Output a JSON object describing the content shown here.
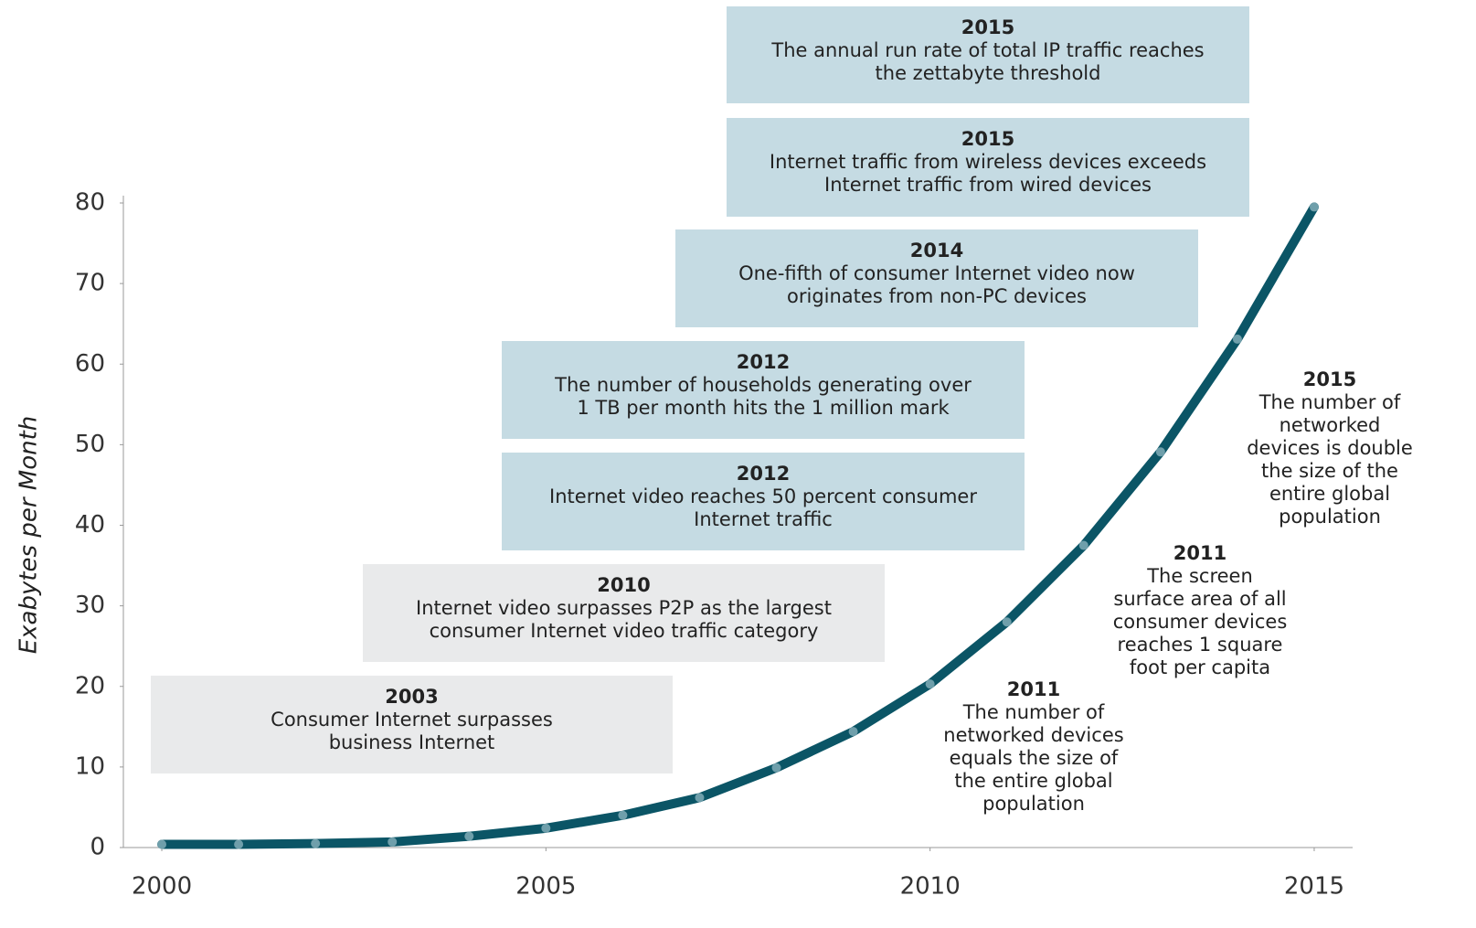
{
  "chart_data": {
    "type": "line",
    "y_label": "Exabytes per Month",
    "x": [
      2000,
      2001,
      2002,
      2003,
      2004,
      2005,
      2006,
      2007,
      2008,
      2009,
      2010,
      2011,
      2012,
      2013,
      2014,
      2015
    ],
    "values": [
      0.4,
      0.4,
      0.5,
      0.7,
      1.4,
      2.4,
      4,
      6.2,
      9.9,
      14.4,
      20.3,
      28,
      37.5,
      49.1,
      63.1,
      79.5
    ],
    "color": "#0b5566",
    "marker_color": "#6f9fab",
    "xlim": [
      1999.5,
      2015.5
    ],
    "xticks": [
      2000,
      2005,
      2010,
      2015
    ],
    "ylim": [
      0,
      80
    ],
    "yticks": [
      0,
      10,
      20,
      30,
      40,
      50,
      60,
      70,
      80
    ],
    "annotations": [
      {
        "year": "2015",
        "lines": [
          "The annual run rate of total IP traffic reaches",
          "the zettabyte threshold"
        ],
        "color": "#c5dbe3"
      },
      {
        "year": "2015",
        "lines": [
          "Internet traffic from wireless devices exceeds",
          "Internet traffic from wired devices"
        ],
        "color": "#c5dbe3"
      },
      {
        "year": "2014",
        "lines": [
          "One-fifth of consumer Internet video now",
          "originates from non-PC devices"
        ],
        "color": "#c5dbe3"
      },
      {
        "year": "2012",
        "lines": [
          "The number of households generating over",
          "1 TB per month hits the 1 million mark"
        ],
        "color": "#c5dbe3"
      },
      {
        "year": "2012",
        "lines": [
          "Internet video reaches 50 percent consumer",
          "Internet traffic"
        ],
        "color": "#c5dbe3"
      },
      {
        "year": "2010",
        "lines": [
          "Internet video surpasses P2P as the largest",
          "consumer Internet video traffic category"
        ],
        "color": "#e9eaeb"
      },
      {
        "year": "2003",
        "lines": [
          "Consumer Internet surpasses",
          "business Internet"
        ],
        "color": "#e9eaeb"
      },
      {
        "year": "2015",
        "lines": [
          "The number of",
          "networked",
          "devices is double",
          "the size of the",
          "entire global",
          "population"
        ]
      },
      {
        "year": "2011",
        "lines": [
          "The screen",
          "surface area of all",
          "consumer devices",
          "reaches 1 square",
          "foot per capita"
        ]
      },
      {
        "year": "2011",
        "lines": [
          "The number of",
          "networked devices",
          "equals the size of",
          "the entire global",
          "population"
        ]
      }
    ]
  }
}
